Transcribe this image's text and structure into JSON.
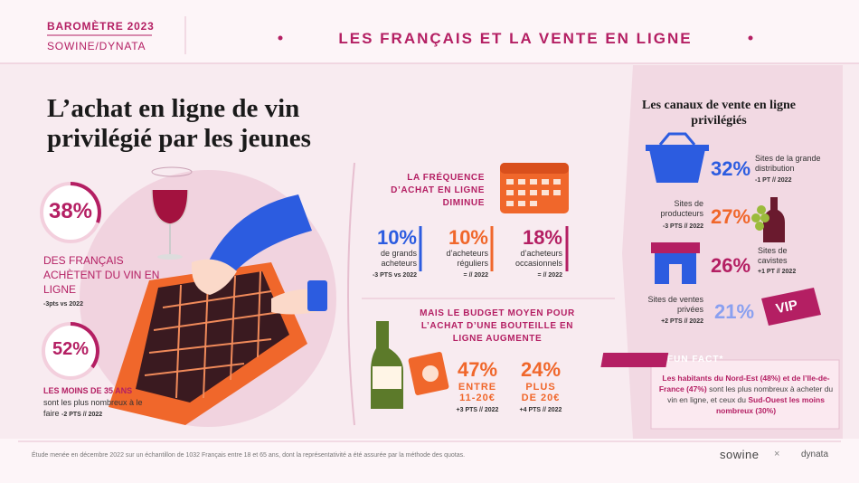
{
  "header": {
    "badge_title": "BAROMÈTRE 2023",
    "badge_subtitle": "SOWINE/DYNATA",
    "title": "LES FRANÇAIS ET LA VENTE EN LIGNE"
  },
  "left": {
    "heading": [
      "L’achat en ligne de vin",
      "privilégié par les jeunes"
    ],
    "stat1": {
      "value": "38%",
      "text": "DES FRANÇAIS ACHÈTENT DU VIN EN LIGNE",
      "note": "-3pts vs 2022"
    },
    "stat2": {
      "value": "52%",
      "title": "LES MOINS DE 35 ANS",
      "text": "sont les plus nombreux à le faire",
      "note": "-2 PTS // 2022"
    }
  },
  "frequency": {
    "title": "LA FRÉQUENCE D’ACHAT EN LIGNE DIMINUE",
    "items": [
      {
        "value": "10%",
        "label": "de grands acheteurs",
        "note": "-3 PTS vs 2022"
      },
      {
        "value": "10%",
        "label": "d’acheteurs réguliers",
        "note": "= // 2022"
      },
      {
        "value": "18%",
        "label": "d’acheteurs occasionnels",
        "note": "= // 2022"
      }
    ]
  },
  "budget": {
    "title": "MAIS LE BUDGET MOYEN POUR L’ACHAT D’UNE BOUTEILLE EN LIGNE AUGMENTE",
    "items": [
      {
        "value": "47%",
        "label": "ENTRE 11-20€",
        "note": "+3 PTS // 2022"
      },
      {
        "value": "24%",
        "label": "PLUS DE 20€",
        "note": "+4 PTS // 2022"
      }
    ]
  },
  "channels": {
    "title": "Les canaux de vente en ligne privilégiés",
    "items": [
      {
        "value": "32%",
        "label": "Sites de la grande distribution",
        "note": "-1 PT // 2022"
      },
      {
        "value": "27%",
        "label": "Sites de producteurs",
        "note": "-3 PTS // 2022"
      },
      {
        "value": "26%",
        "label": "Sites de cavistes",
        "note": "+1 PT // 2022"
      },
      {
        "value": "21%",
        "label": "Sites de ventes privées",
        "note": "+2 PTS // 2022"
      }
    ],
    "vip": "VIP"
  },
  "fun_fact": {
    "label": "FUN FACT*",
    "text": [
      "Les habitants du Nord-Est (48%)",
      " et de l’Ile-de-France (47%)",
      " sont les plus nombreux à acheter du vin en ligne, et ceux du ",
      "Sud-Ouest les moins nombreux (30%)"
    ]
  },
  "footer": {
    "note": "Étude menée en décembre 2022 sur un échantillon de 1032 Français entre 18 et 65 ans, dont la représentativité a été assurée par la méthode des quotas.",
    "logo1": "sowine",
    "separator": "×",
    "logo2": "dynata"
  }
}
